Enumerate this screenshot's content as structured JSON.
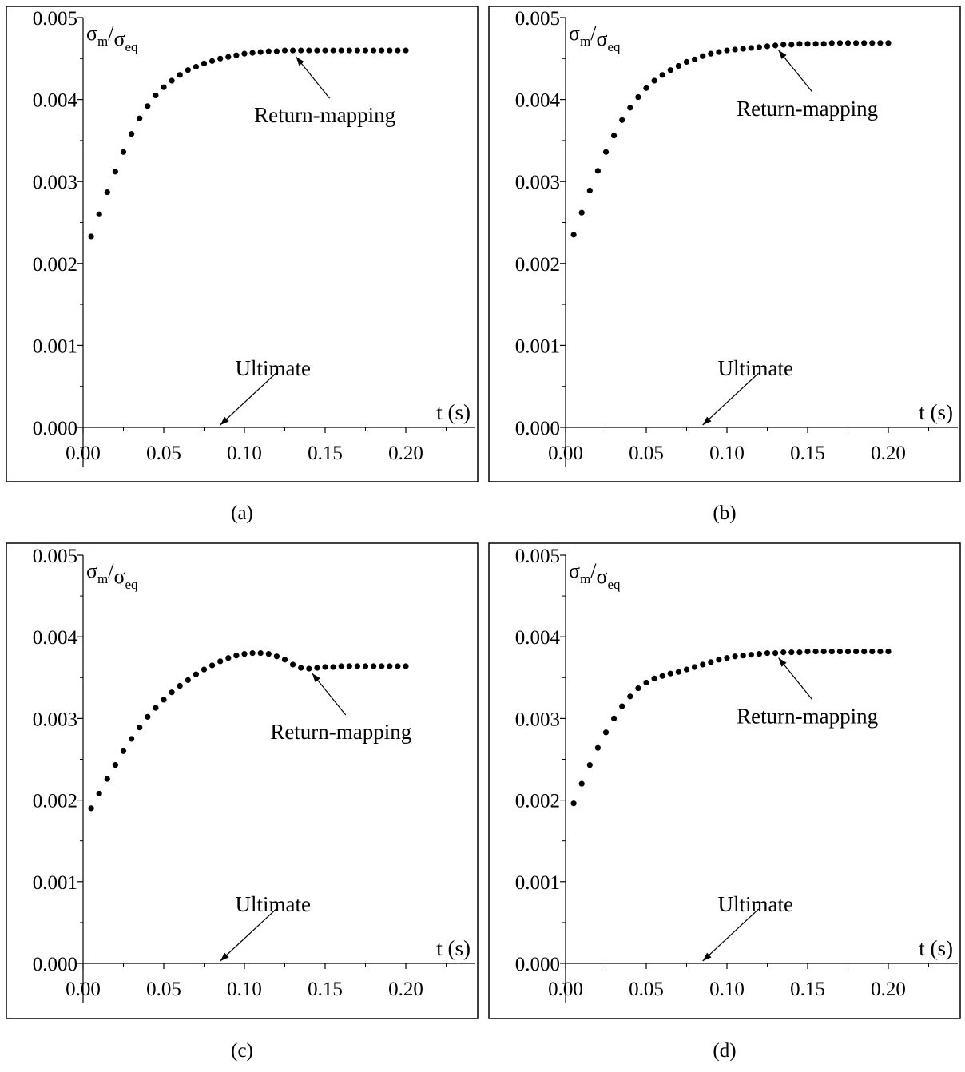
{
  "chart_data": [
    {
      "type": "scatter",
      "panel_label": "(a)",
      "ylabel": {
        "sym1": "σ",
        "sub1": "m",
        "sym2": "σ",
        "sub2": "eq"
      },
      "xlabel": "t (s)",
      "xlim": [
        0.0,
        0.24
      ],
      "ylim": [
        0.0,
        0.005
      ],
      "x_ticks": [
        "0.00",
        "0.05",
        "0.10",
        "0.15",
        "0.20"
      ],
      "y_ticks": [
        "0.000",
        "0.001",
        "0.002",
        "0.003",
        "0.004",
        "0.005"
      ],
      "grid": false,
      "series": [
        {
          "marker": "circle",
          "x": [
            0.005,
            0.01,
            0.015,
            0.02,
            0.025,
            0.03,
            0.035,
            0.04,
            0.045,
            0.05,
            0.055,
            0.06,
            0.065,
            0.07,
            0.075,
            0.08,
            0.085,
            0.09,
            0.095,
            0.1,
            0.105,
            0.11,
            0.115,
            0.12,
            0.125,
            0.13,
            0.135,
            0.14,
            0.145,
            0.15,
            0.155,
            0.16,
            0.165,
            0.17,
            0.175,
            0.18,
            0.185,
            0.19,
            0.195,
            0.2
          ],
          "y": [
            0.00233,
            0.0026,
            0.00287,
            0.00312,
            0.00336,
            0.00358,
            0.00377,
            0.00392,
            0.00405,
            0.00415,
            0.00423,
            0.0043,
            0.00436,
            0.0044,
            0.00444,
            0.00447,
            0.0045,
            0.00452,
            0.00454,
            0.00456,
            0.00457,
            0.00458,
            0.00459,
            0.00459,
            0.0046,
            0.0046,
            0.0046,
            0.0046,
            0.0046,
            0.0046,
            0.0046,
            0.0046,
            0.0046,
            0.0046,
            0.0046,
            0.0046,
            0.0046,
            0.0046,
            0.0046,
            0.0046
          ]
        }
      ],
      "annotations": [
        {
          "text": "Return-mapping",
          "x": 0.13,
          "y": 0.00458
        },
        {
          "text": "Ultimate",
          "x": 0.085,
          "y": 0.0
        }
      ]
    },
    {
      "type": "scatter",
      "panel_label": "(b)",
      "ylabel": {
        "sym1": "σ",
        "sub1": "m",
        "sym2": "σ",
        "sub2": "eq"
      },
      "xlabel": "t (s)",
      "xlim": [
        0.0,
        0.24
      ],
      "ylim": [
        0.0,
        0.005
      ],
      "x_ticks": [
        "0.00",
        "0.05",
        "0.10",
        "0.15",
        "0.20"
      ],
      "y_ticks": [
        "0.000",
        "0.001",
        "0.002",
        "0.003",
        "0.004",
        "0.005"
      ],
      "grid": false,
      "series": [
        {
          "marker": "circle",
          "x": [
            0.005,
            0.01,
            0.015,
            0.02,
            0.025,
            0.03,
            0.035,
            0.04,
            0.045,
            0.05,
            0.055,
            0.06,
            0.065,
            0.07,
            0.075,
            0.08,
            0.085,
            0.09,
            0.095,
            0.1,
            0.105,
            0.11,
            0.115,
            0.12,
            0.125,
            0.13,
            0.135,
            0.14,
            0.145,
            0.15,
            0.155,
            0.16,
            0.165,
            0.17,
            0.175,
            0.18,
            0.185,
            0.19,
            0.195,
            0.2
          ],
          "y": [
            0.00235,
            0.00262,
            0.00289,
            0.00313,
            0.00336,
            0.00356,
            0.00375,
            0.0039,
            0.00403,
            0.00414,
            0.00423,
            0.0043,
            0.00436,
            0.00441,
            0.00446,
            0.00449,
            0.00453,
            0.00456,
            0.00458,
            0.0046,
            0.00461,
            0.00462,
            0.00463,
            0.00464,
            0.00465,
            0.00466,
            0.00467,
            0.00467,
            0.00468,
            0.00468,
            0.00468,
            0.00468,
            0.00469,
            0.00469,
            0.00469,
            0.00469,
            0.00469,
            0.00469,
            0.00469,
            0.00469
          ]
        }
      ],
      "annotations": [
        {
          "text": "Return-mapping",
          "x": 0.13,
          "y": 0.00466
        },
        {
          "text": "Ultimate",
          "x": 0.085,
          "y": 0.0
        }
      ]
    },
    {
      "type": "scatter",
      "panel_label": "(c)",
      "ylabel": {
        "sym1": "σ",
        "sub1": "m",
        "sym2": "σ",
        "sub2": "eq"
      },
      "xlabel": "t (s)",
      "xlim": [
        0.0,
        0.24
      ],
      "ylim": [
        0.0,
        0.005
      ],
      "x_ticks": [
        "0.00",
        "0.05",
        "0.10",
        "0.15",
        "0.20"
      ],
      "y_ticks": [
        "0.000",
        "0.001",
        "0.002",
        "0.003",
        "0.004",
        "0.005"
      ],
      "grid": false,
      "series": [
        {
          "marker": "circle",
          "x": [
            0.005,
            0.01,
            0.015,
            0.02,
            0.025,
            0.03,
            0.035,
            0.04,
            0.045,
            0.05,
            0.055,
            0.06,
            0.065,
            0.07,
            0.075,
            0.08,
            0.085,
            0.09,
            0.095,
            0.1,
            0.105,
            0.11,
            0.115,
            0.12,
            0.125,
            0.13,
            0.135,
            0.14,
            0.145,
            0.15,
            0.155,
            0.16,
            0.165,
            0.17,
            0.175,
            0.18,
            0.185,
            0.19,
            0.195,
            0.2
          ],
          "y": [
            0.0019,
            0.00208,
            0.00226,
            0.00243,
            0.0026,
            0.00275,
            0.00289,
            0.00302,
            0.00313,
            0.00323,
            0.00332,
            0.0034,
            0.00347,
            0.00354,
            0.0036,
            0.00365,
            0.0037,
            0.00374,
            0.00377,
            0.00379,
            0.0038,
            0.0038,
            0.00379,
            0.00376,
            0.00372,
            0.00366,
            0.00362,
            0.00361,
            0.00362,
            0.00363,
            0.00363,
            0.00364,
            0.00364,
            0.00364,
            0.00364,
            0.00364,
            0.00364,
            0.00364,
            0.00364,
            0.00364
          ]
        }
      ],
      "annotations": [
        {
          "text": "Return-mapping",
          "x": 0.14,
          "y": 0.00361
        },
        {
          "text": "Ultimate",
          "x": 0.085,
          "y": 0.0
        }
      ]
    },
    {
      "type": "scatter",
      "panel_label": "(d)",
      "ylabel": {
        "sym1": "σ",
        "sub1": "m",
        "sym2": "σ",
        "sub2": "eq"
      },
      "xlabel": "t (s)",
      "xlim": [
        0.0,
        0.24
      ],
      "ylim": [
        0.0,
        0.005
      ],
      "x_ticks": [
        "0.00",
        "0.05",
        "0.10",
        "0.15",
        "0.20"
      ],
      "y_ticks": [
        "0.000",
        "0.001",
        "0.002",
        "0.003",
        "0.004",
        "0.005"
      ],
      "grid": false,
      "series": [
        {
          "marker": "circle",
          "x": [
            0.005,
            0.01,
            0.015,
            0.02,
            0.025,
            0.03,
            0.035,
            0.04,
            0.045,
            0.05,
            0.055,
            0.06,
            0.065,
            0.07,
            0.075,
            0.08,
            0.085,
            0.09,
            0.095,
            0.1,
            0.105,
            0.11,
            0.115,
            0.12,
            0.125,
            0.13,
            0.135,
            0.14,
            0.145,
            0.15,
            0.155,
            0.16,
            0.165,
            0.17,
            0.175,
            0.18,
            0.185,
            0.19,
            0.195,
            0.2
          ],
          "y": [
            0.00196,
            0.0022,
            0.00243,
            0.00264,
            0.00283,
            0.003,
            0.00315,
            0.00327,
            0.00337,
            0.00344,
            0.00349,
            0.00352,
            0.00355,
            0.00357,
            0.0036,
            0.00363,
            0.00366,
            0.00369,
            0.00372,
            0.00374,
            0.00376,
            0.00377,
            0.00378,
            0.00379,
            0.0038,
            0.0038,
            0.00381,
            0.00381,
            0.00381,
            0.00382,
            0.00382,
            0.00382,
            0.00382,
            0.00382,
            0.00382,
            0.00382,
            0.00382,
            0.00382,
            0.00382,
            0.00382
          ]
        }
      ],
      "annotations": [
        {
          "text": "Return-mapping",
          "x": 0.13,
          "y": 0.0038
        },
        {
          "text": "Ultimate",
          "x": 0.085,
          "y": 0.0
        }
      ]
    }
  ]
}
